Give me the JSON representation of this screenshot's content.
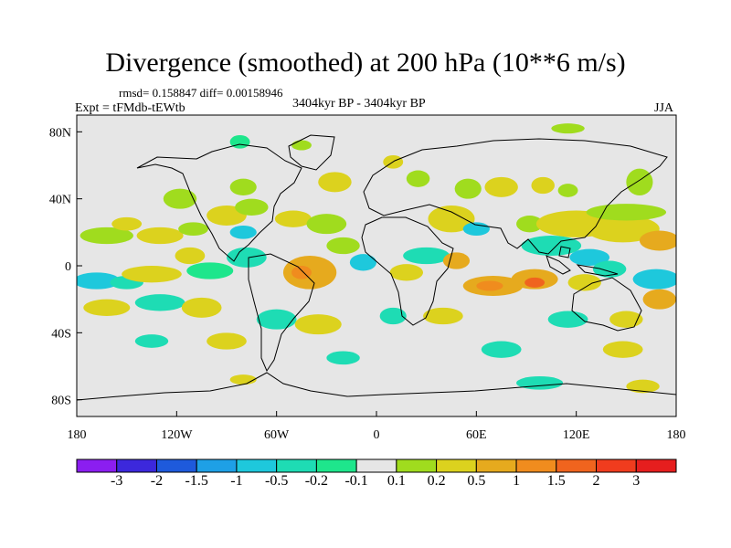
{
  "title": "Divergence (smoothed) at 200 hPa (10**6 m/s)",
  "stats_text": "rmsd= 0.158847 diff= 0.00158946",
  "experiment": "Expt = tFMdb-tEWtb",
  "period": "3404kyr BP - 3404kyr BP",
  "season": "JJA",
  "lat_ticks": [
    {
      "label": "80N",
      "value": 80
    },
    {
      "label": "40N",
      "value": 40
    },
    {
      "label": "0",
      "value": 0
    },
    {
      "label": "40S",
      "value": -40
    },
    {
      "label": "80S",
      "value": -80
    }
  ],
  "lon_ticks": [
    {
      "label": "180",
      "value": -180
    },
    {
      "label": "120W",
      "value": -120
    },
    {
      "label": "60W",
      "value": -60
    },
    {
      "label": "0",
      "value": 0
    },
    {
      "label": "60E",
      "value": 60
    },
    {
      "label": "120E",
      "value": 120
    },
    {
      "label": "180",
      "value": 180
    }
  ],
  "colorbar": {
    "colors": [
      "#8b1ef0",
      "#3c28dc",
      "#1e5adc",
      "#1ea0e6",
      "#1ec8dc",
      "#1edcb4",
      "#1ee68c",
      "#e6e6e6",
      "#a0dc1e",
      "#dcd21e",
      "#e6aa1e",
      "#f08c1e",
      "#f0641e",
      "#f03c1e",
      "#e61e1e"
    ],
    "labels": [
      "-3",
      "-2",
      "-1.5",
      "-1",
      "-0.5",
      "-0.2",
      "-0.1",
      "0.1",
      "0.2",
      "0.5",
      "1",
      "1.5",
      "2",
      "3"
    ]
  },
  "fields": {
    "background": "#e6e6e6",
    "blobs": [
      {
        "lon": -162,
        "lat": 18,
        "rlon": 16,
        "rlat": 5,
        "level": 8
      },
      {
        "lon": -150,
        "lat": 25,
        "rlon": 9,
        "rlat": 4,
        "level": 9
      },
      {
        "lon": -130,
        "lat": 18,
        "rlon": 14,
        "rlat": 5,
        "level": 9
      },
      {
        "lon": -110,
        "lat": 22,
        "rlon": 9,
        "rlat": 4,
        "level": 8
      },
      {
        "lon": -90,
        "lat": 30,
        "rlon": 12,
        "rlat": 6,
        "level": 9
      },
      {
        "lon": -75,
        "lat": 35,
        "rlon": 10,
        "rlat": 5,
        "level": 8
      },
      {
        "lon": -50,
        "lat": 28,
        "rlon": 11,
        "rlat": 5,
        "level": 9
      },
      {
        "lon": -30,
        "lat": 25,
        "rlon": 12,
        "rlat": 6,
        "level": 8
      },
      {
        "lon": -118,
        "lat": 40,
        "rlon": 10,
        "rlat": 6,
        "level": 8
      },
      {
        "lon": -80,
        "lat": 47,
        "rlon": 8,
        "rlat": 5,
        "level": 8
      },
      {
        "lon": -25,
        "lat": 50,
        "rlon": 10,
        "rlat": 6,
        "level": 9
      },
      {
        "lon": 25,
        "lat": 52,
        "rlon": 7,
        "rlat": 5,
        "level": 8
      },
      {
        "lon": 10,
        "lat": 62,
        "rlon": 6,
        "rlat": 4,
        "level": 9
      },
      {
        "lon": 55,
        "lat": 46,
        "rlon": 8,
        "rlat": 6,
        "level": 8
      },
      {
        "lon": 75,
        "lat": 47,
        "rlon": 10,
        "rlat": 6,
        "level": 9
      },
      {
        "lon": 100,
        "lat": 48,
        "rlon": 7,
        "rlat": 5,
        "level": 9
      },
      {
        "lon": 115,
        "lat": 45,
        "rlon": 6,
        "rlat": 4,
        "level": 8
      },
      {
        "lon": 158,
        "lat": 50,
        "rlon": 8,
        "rlat": 8,
        "level": 8
      },
      {
        "lon": 115,
        "lat": 82,
        "rlon": 10,
        "rlat": 3,
        "level": 8
      },
      {
        "lon": -82,
        "lat": 74,
        "rlon": 6,
        "rlat": 4,
        "level": 6
      },
      {
        "lon": -45,
        "lat": 72,
        "rlon": 6,
        "rlat": 3,
        "level": 8
      },
      {
        "lon": 45,
        "lat": 28,
        "rlon": 14,
        "rlat": 8,
        "level": 9
      },
      {
        "lon": 60,
        "lat": 22,
        "rlon": 8,
        "rlat": 4,
        "level": 4
      },
      {
        "lon": 92,
        "lat": 25,
        "rlon": 8,
        "rlat": 5,
        "level": 8
      },
      {
        "lon": 120,
        "lat": 25,
        "rlon": 24,
        "rlat": 8,
        "level": 9
      },
      {
        "lon": 148,
        "lat": 22,
        "rlon": 22,
        "rlat": 8,
        "level": 9
      },
      {
        "lon": 170,
        "lat": 15,
        "rlon": 12,
        "rlat": 6,
        "level": 10
      },
      {
        "lon": 150,
        "lat": 32,
        "rlon": 24,
        "rlat": 5,
        "level": 8
      },
      {
        "lon": 105,
        "lat": 12,
        "rlon": 18,
        "rlat": 6,
        "level": 5
      },
      {
        "lon": 128,
        "lat": 5,
        "rlon": 12,
        "rlat": 5,
        "level": 4
      },
      {
        "lon": 168,
        "lat": -8,
        "rlon": 14,
        "rlat": 6,
        "level": 4
      },
      {
        "lon": -168,
        "lat": -9,
        "rlon": 14,
        "rlat": 5,
        "level": 4
      },
      {
        "lon": -150,
        "lat": -10,
        "rlon": 10,
        "rlat": 4,
        "level": 5
      },
      {
        "lon": -135,
        "lat": -5,
        "rlon": 18,
        "rlat": 5,
        "level": 9
      },
      {
        "lon": -112,
        "lat": 6,
        "rlon": 9,
        "rlat": 5,
        "level": 9
      },
      {
        "lon": -100,
        "lat": -3,
        "rlon": 14,
        "rlat": 5,
        "level": 6
      },
      {
        "lon": -78,
        "lat": 5,
        "rlon": 12,
        "rlat": 6,
        "level": 5
      },
      {
        "lon": -80,
        "lat": 20,
        "rlon": 8,
        "rlat": 4,
        "level": 4
      },
      {
        "lon": -40,
        "lat": -4,
        "rlon": 16,
        "rlat": 10,
        "level": 10
      },
      {
        "lon": -45,
        "lat": -4,
        "rlon": 6,
        "rlat": 4,
        "level": 11
      },
      {
        "lon": -20,
        "lat": 12,
        "rlon": 10,
        "rlat": 5,
        "level": 8
      },
      {
        "lon": -8,
        "lat": 2,
        "rlon": 8,
        "rlat": 5,
        "level": 4
      },
      {
        "lon": 30,
        "lat": 6,
        "rlon": 14,
        "rlat": 5,
        "level": 5
      },
      {
        "lon": 18,
        "lat": -4,
        "rlon": 10,
        "rlat": 5,
        "level": 9
      },
      {
        "lon": 48,
        "lat": 3,
        "rlon": 8,
        "rlat": 5,
        "level": 10
      },
      {
        "lon": 70,
        "lat": -12,
        "rlon": 18,
        "rlat": 6,
        "level": 10
      },
      {
        "lon": 68,
        "lat": -12,
        "rlon": 8,
        "rlat": 3,
        "level": 11
      },
      {
        "lon": 95,
        "lat": -8,
        "rlon": 14,
        "rlat": 6,
        "level": 10
      },
      {
        "lon": 95,
        "lat": -10,
        "rlon": 6,
        "rlat": 3,
        "level": 12
      },
      {
        "lon": 125,
        "lat": -10,
        "rlon": 10,
        "rlat": 5,
        "level": 9
      },
      {
        "lon": 140,
        "lat": -2,
        "rlon": 10,
        "rlat": 5,
        "level": 5
      },
      {
        "lon": 170,
        "lat": -20,
        "rlon": 10,
        "rlat": 6,
        "level": 10
      },
      {
        "lon": -162,
        "lat": -25,
        "rlon": 14,
        "rlat": 5,
        "level": 9
      },
      {
        "lon": -130,
        "lat": -22,
        "rlon": 15,
        "rlat": 5,
        "level": 5
      },
      {
        "lon": -105,
        "lat": -25,
        "rlon": 12,
        "rlat": 6,
        "level": 9
      },
      {
        "lon": -60,
        "lat": -32,
        "rlon": 12,
        "rlat": 6,
        "level": 5
      },
      {
        "lon": -35,
        "lat": -35,
        "rlon": 14,
        "rlat": 6,
        "level": 9
      },
      {
        "lon": 10,
        "lat": -30,
        "rlon": 8,
        "rlat": 5,
        "level": 5
      },
      {
        "lon": 40,
        "lat": -30,
        "rlon": 12,
        "rlat": 5,
        "level": 9
      },
      {
        "lon": 115,
        "lat": -32,
        "rlon": 12,
        "rlat": 5,
        "level": 5
      },
      {
        "lon": 150,
        "lat": -32,
        "rlon": 10,
        "rlat": 5,
        "level": 9
      },
      {
        "lon": -135,
        "lat": -45,
        "rlon": 10,
        "rlat": 4,
        "level": 5
      },
      {
        "lon": -90,
        "lat": -45,
        "rlon": 12,
        "rlat": 5,
        "level": 9
      },
      {
        "lon": -20,
        "lat": -55,
        "rlon": 10,
        "rlat": 4,
        "level": 5
      },
      {
        "lon": 75,
        "lat": -50,
        "rlon": 12,
        "rlat": 5,
        "level": 5
      },
      {
        "lon": 148,
        "lat": -50,
        "rlon": 12,
        "rlat": 5,
        "level": 9
      },
      {
        "lon": 98,
        "lat": -70,
        "rlon": 14,
        "rlat": 4,
        "level": 5
      },
      {
        "lon": 160,
        "lat": -72,
        "rlon": 10,
        "rlat": 4,
        "level": 9
      },
      {
        "lon": -80,
        "lat": -68,
        "rlon": 8,
        "rlat": 3,
        "level": 9
      }
    ]
  }
}
